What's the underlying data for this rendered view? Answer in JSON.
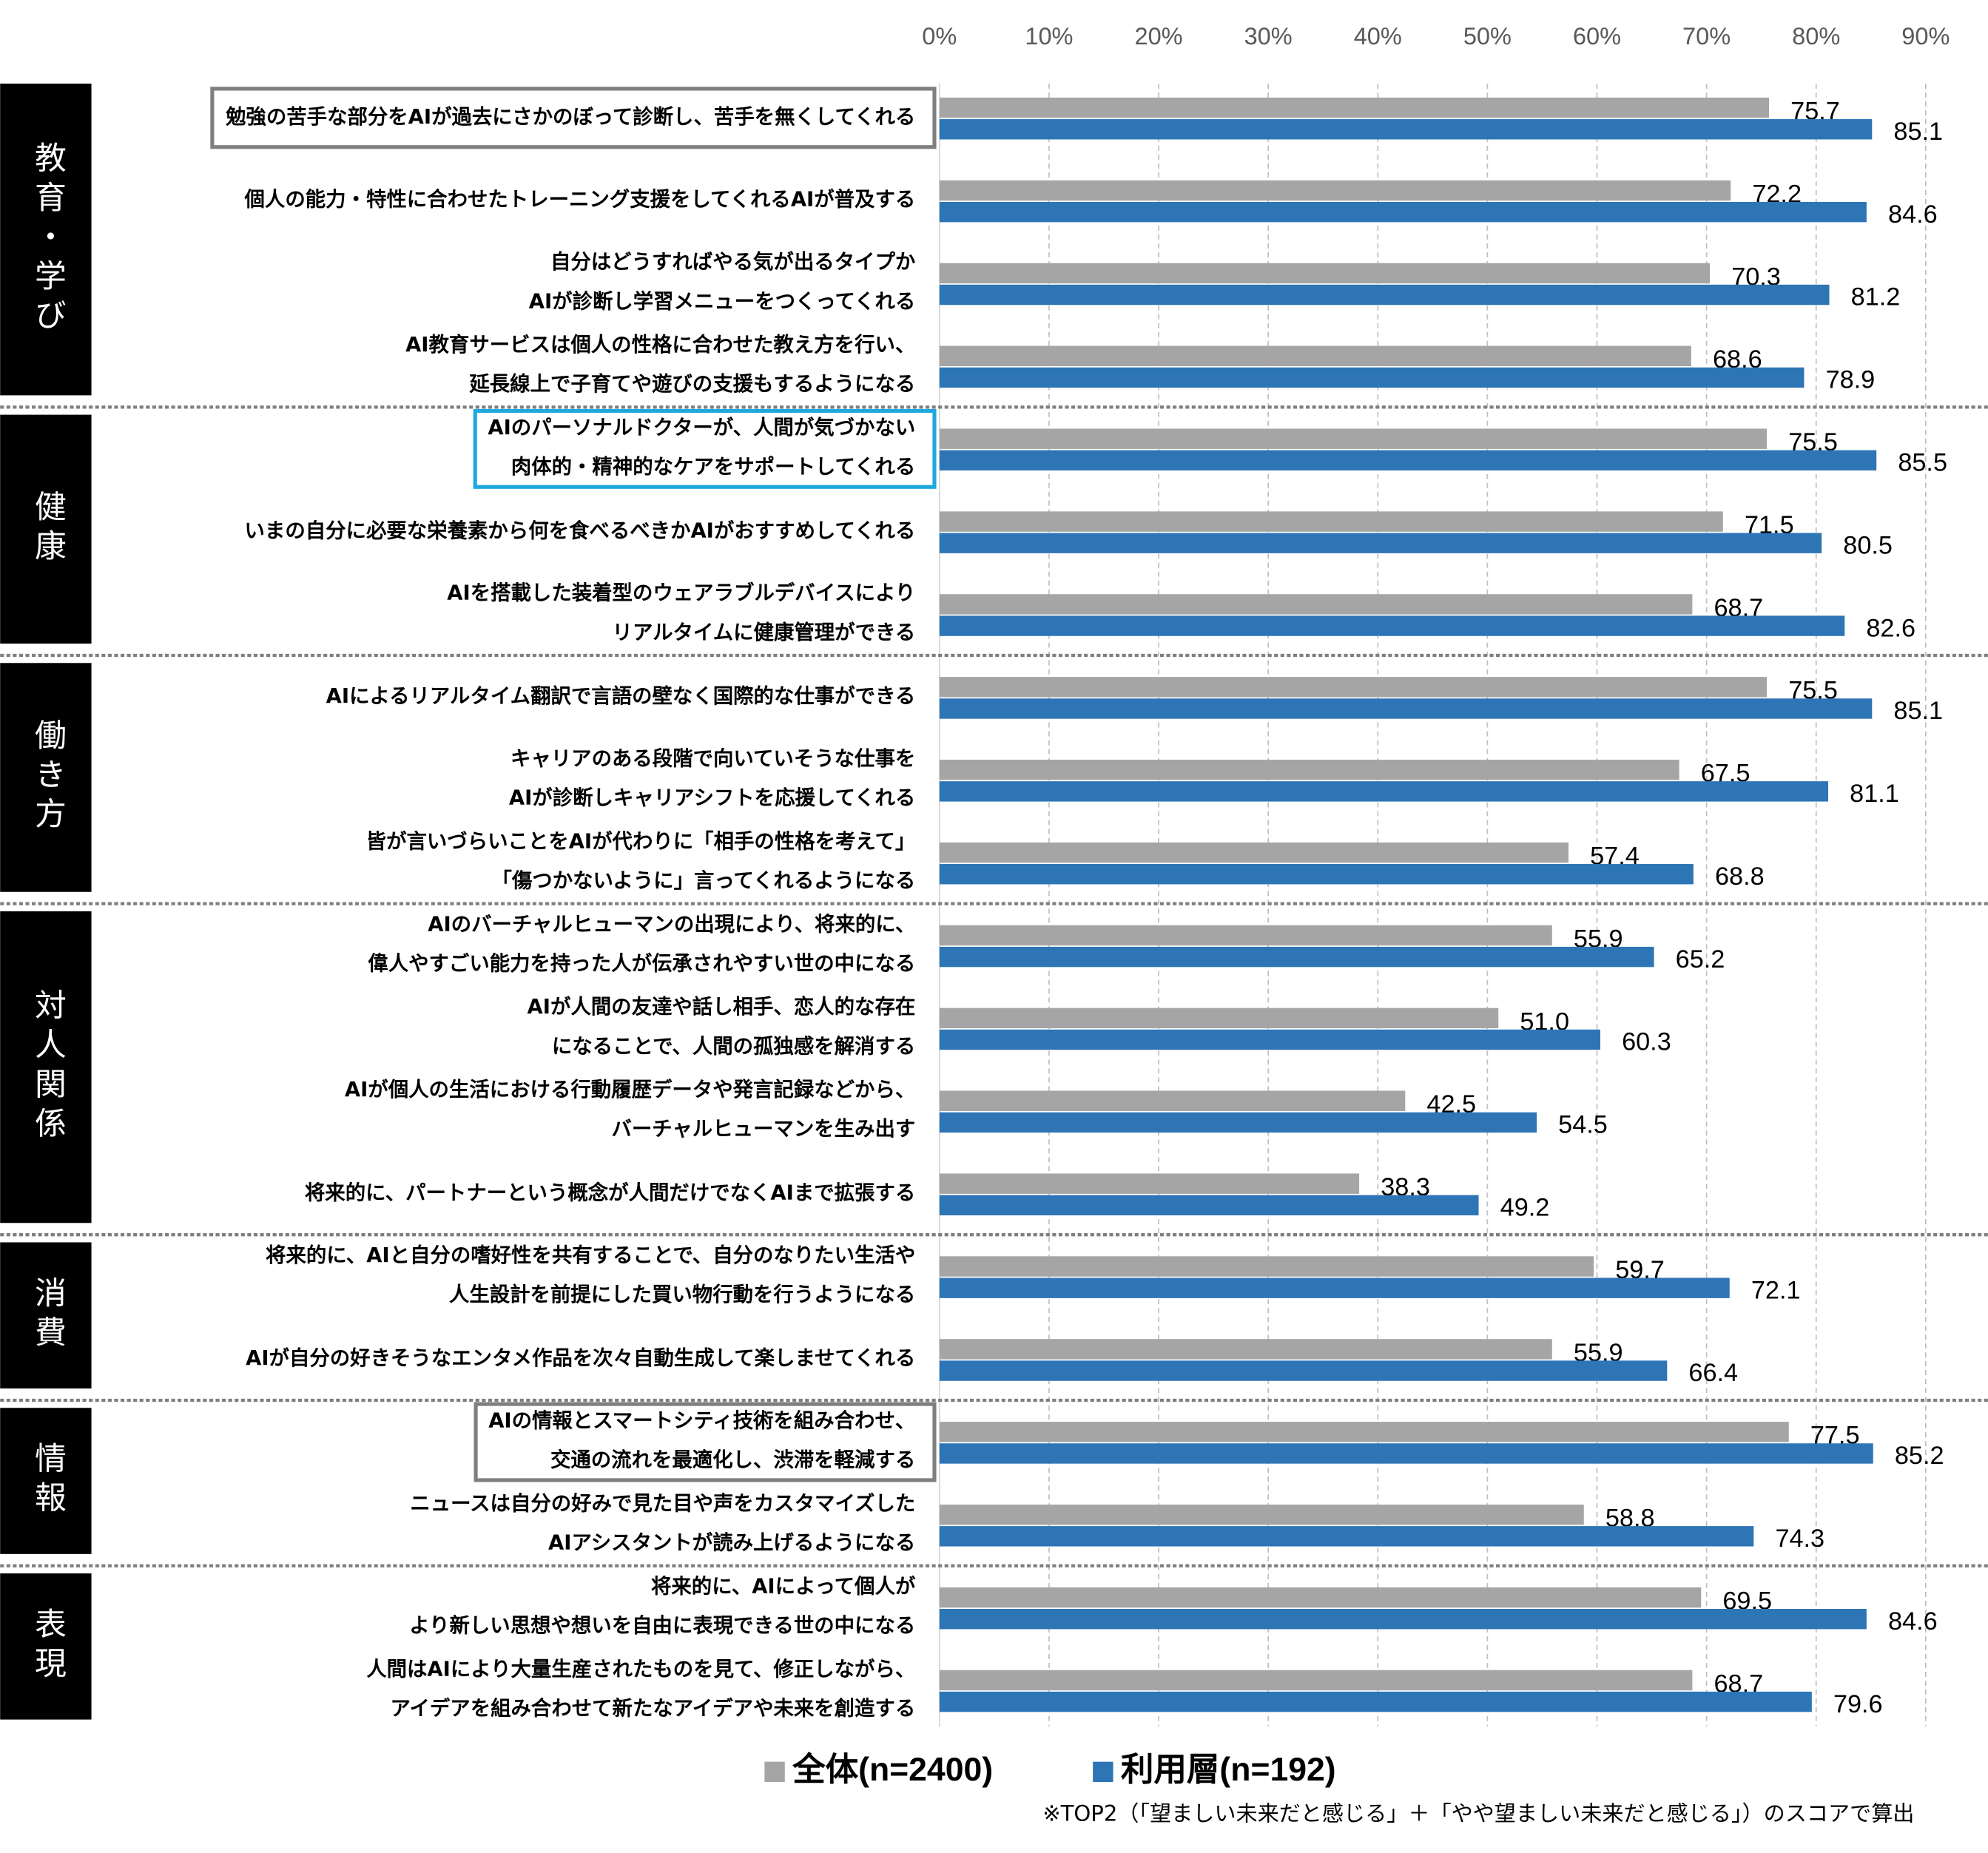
{
  "chart_data": {
    "type": "bar",
    "orientation": "horizontal",
    "groups": [
      {
        "name": "教育・学び",
        "categories": [
          {
            "lines": [
              "勉強の苦手な部分をAIが過去にさかのぼって診断し、苦手を無くしてくれる"
            ],
            "box": "#7f7f7f"
          },
          {
            "lines": [
              "個人の能力・特性に合わせたトレーニング支援をしてくれるAIが普及する"
            ]
          },
          {
            "lines": [
              "自分はどうすればやる気が出るタイプか",
              "AIが診断し学習メニューをつくってくれる"
            ]
          },
          {
            "lines": [
              "AI教育サービスは個人の性格に合わせた教え方を行い、",
              "延長線上で子育てや遊びの支援もするようになる"
            ]
          }
        ]
      },
      {
        "name": "健康",
        "categories": [
          {
            "lines": [
              "AIのパーソナルドクターが、人間が気づかない",
              "肉体的・精神的なケアをサポートしてくれる"
            ],
            "box": "#1ea8e0"
          },
          {
            "lines": [
              "いまの自分に必要な栄養素から何を食べるべきかAIがおすすめしてくれる"
            ]
          },
          {
            "lines": [
              "AIを搭載した装着型のウェアラブルデバイスにより",
              "リアルタイムに健康管理ができる"
            ]
          }
        ]
      },
      {
        "name": "働き方",
        "categories": [
          {
            "lines": [
              "AIによるリアルタイム翻訳で言語の壁なく国際的な仕事ができる"
            ]
          },
          {
            "lines": [
              "キャリアのある段階で向いていそうな仕事を",
              "AIが診断しキャリアシフトを応援してくれる"
            ]
          },
          {
            "lines": [
              "皆が言いづらいことをAIが代わりに「相手の性格を考えて」",
              "「傷つかないように」言ってくれるようになる"
            ]
          }
        ]
      },
      {
        "name": "対人関係",
        "categories": [
          {
            "lines": [
              "AIのバーチャルヒューマンの出現により、将来的に、",
              "偉人やすごい能力を持った人が伝承されやすい世の中になる"
            ]
          },
          {
            "lines": [
              "AIが人間の友達や話し相手、恋人的な存在",
              "になることで、人間の孤独感を解消する"
            ]
          },
          {
            "lines": [
              "AIが個人の生活における行動履歴データや発言記録などから、",
              "バーチャルヒューマンを生み出す"
            ]
          },
          {
            "lines": [
              "将来的に、パートナーという概念が人間だけでなくAIまで拡張する"
            ]
          }
        ]
      },
      {
        "name": "消費",
        "categories": [
          {
            "lines": [
              "将来的に、AIと自分の嗜好性を共有することで、自分のなりたい生活や",
              "人生設計を前提にした買い物行動を行うようになる"
            ]
          },
          {
            "lines": [
              "AIが自分の好きそうなエンタメ作品を次々自動生成して楽しませてくれる"
            ]
          }
        ]
      },
      {
        "name": "情報",
        "categories": [
          {
            "lines": [
              "AIの情報とスマートシティ技術を組み合わせ、",
              "交通の流れを最適化し、渋滞を軽減する"
            ],
            "box": "#7f7f7f"
          },
          {
            "lines": [
              "ニュースは自分の好みで見た目や声をカスタマイズした",
              "AIアシスタントが読み上げるようになる"
            ]
          }
        ]
      },
      {
        "name": "表現",
        "categories": [
          {
            "lines": [
              "将来的に、AIによって個人が",
              "より新しい思想や想いを自由に表現できる世の中になる"
            ]
          },
          {
            "lines": [
              "人間はAIにより大量生産されたものを見て、修正しながら、",
              "アイデアを組み合わせて新たなアイデアや未来を創造する"
            ]
          }
        ]
      }
    ],
    "series": [
      {
        "name": "全体(n=2400)",
        "color": "#a5a5a5",
        "values": [
          75.7,
          72.2,
          70.3,
          68.6,
          75.5,
          71.5,
          68.7,
          75.5,
          67.5,
          57.4,
          55.9,
          51.0,
          42.5,
          38.3,
          59.7,
          55.9,
          77.5,
          58.8,
          69.5,
          68.7
        ],
        "value_labels": [
          "75.7",
          "72.2",
          "70.3",
          "68.6",
          "75.5",
          "71.5",
          "68.7",
          "75.5",
          "67.5",
          "57.4",
          "55.9",
          "51.0",
          "42.5",
          "38.3",
          "59.7",
          "55.9",
          "77.5",
          "58.8",
          "69.5",
          "68.7"
        ]
      },
      {
        "name": "利用層(n=192)",
        "color": "#2e75b6",
        "values": [
          85.1,
          84.6,
          81.2,
          78.9,
          85.5,
          80.5,
          82.6,
          85.1,
          81.1,
          68.8,
          65.2,
          60.3,
          54.5,
          49.2,
          72.1,
          66.4,
          85.2,
          74.3,
          84.6,
          79.6
        ]
      }
    ],
    "xlim": [
      0,
      90
    ],
    "xticks": [
      {
        "value": 0,
        "label": "0%"
      },
      {
        "value": 10,
        "label": "10%"
      },
      {
        "value": 20,
        "label": "20%"
      },
      {
        "value": 30,
        "label": "30%"
      },
      {
        "value": 40,
        "label": "40%"
      },
      {
        "value": 50,
        "label": "50%"
      },
      {
        "value": 60,
        "label": "60%"
      },
      {
        "value": 70,
        "label": "70%"
      },
      {
        "value": 80,
        "label": "80%"
      },
      {
        "value": 90,
        "label": "90%"
      }
    ],
    "grid": true,
    "note": "※TOP2（「望ましい未来だと感じる」＋「やや望ましい未来だと感じる」）のスコアで算出"
  }
}
